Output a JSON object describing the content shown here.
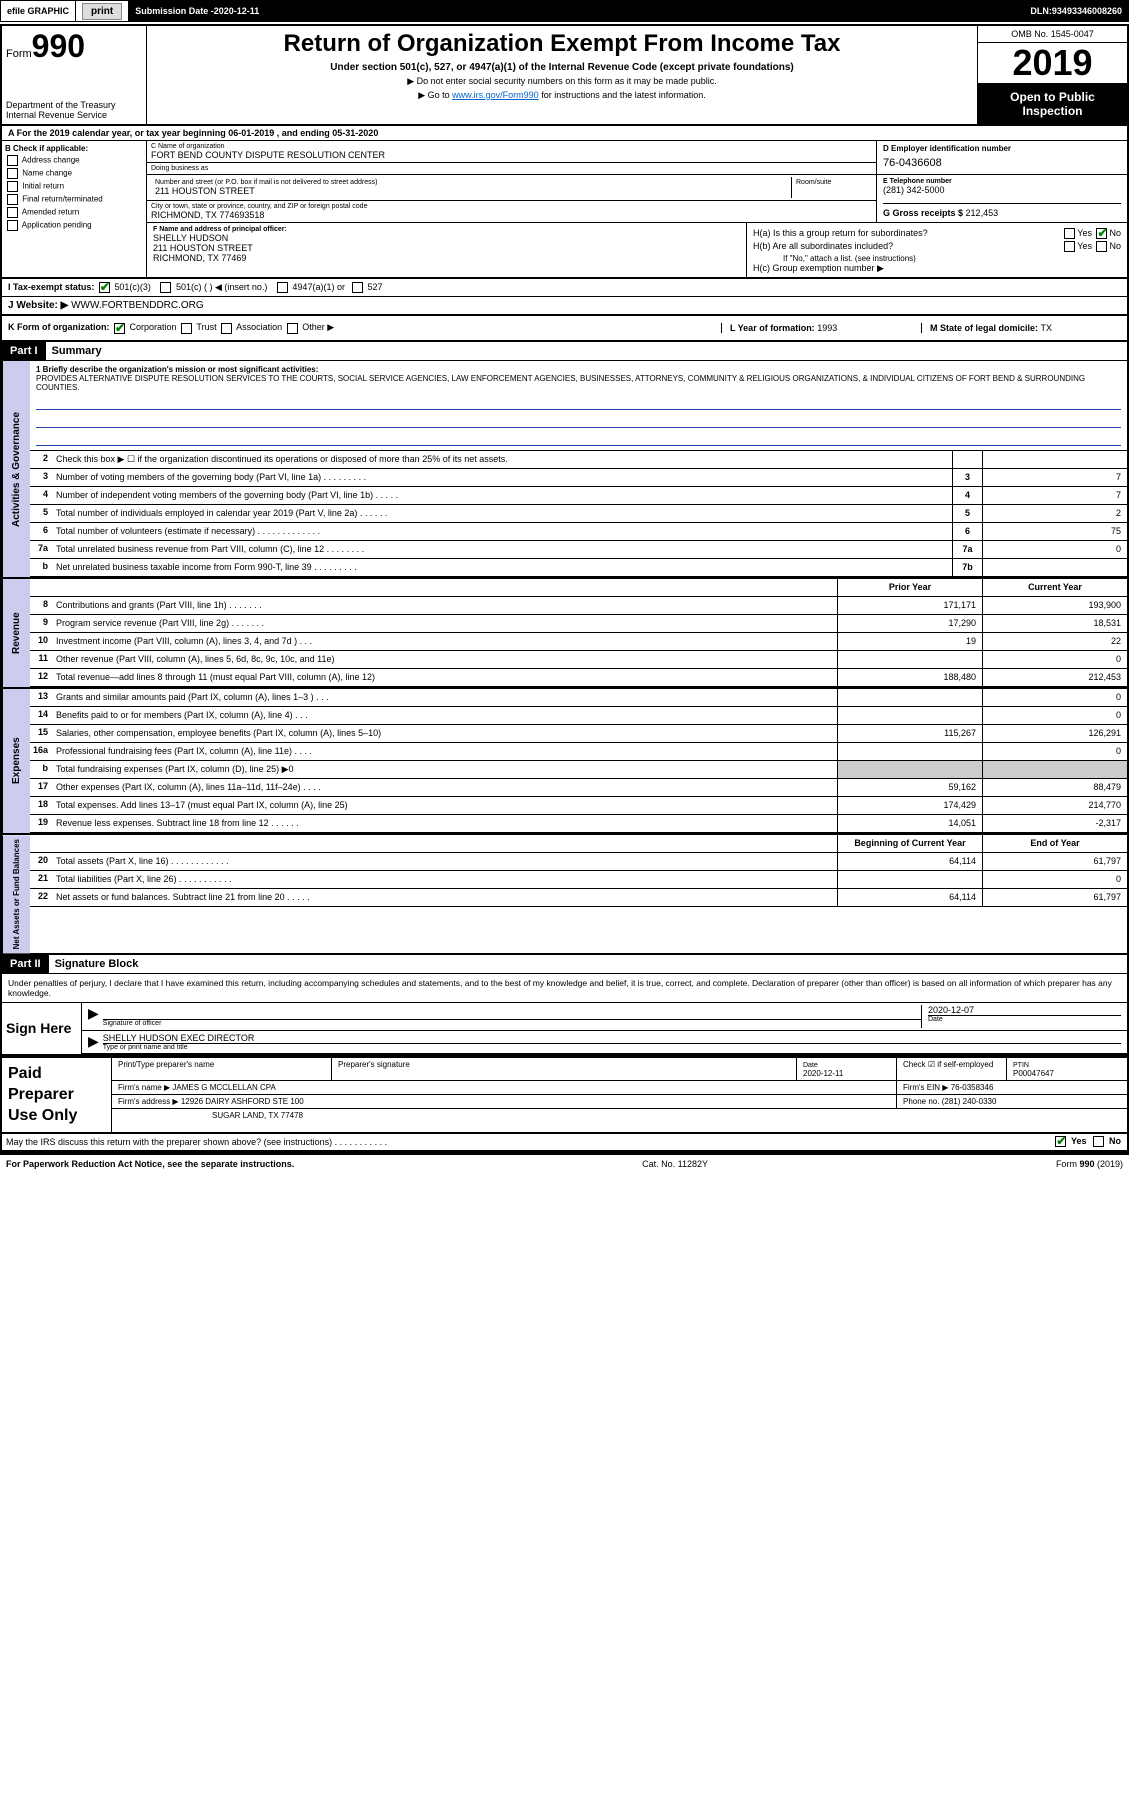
{
  "topbar": {
    "efile": "efile GRAPHIC",
    "print": "print",
    "subdate_lbl": "Submission Date - ",
    "subdate": "2020-12-11",
    "dln_lbl": "DLN: ",
    "dln": "93493346008260"
  },
  "header": {
    "form_prefix": "Form",
    "form_num": "990",
    "dept1": "Department of the Treasury",
    "dept2": "Internal Revenue Service",
    "title": "Return of Organization Exempt From Income Tax",
    "subtitle": "Under section 501(c), 527, or 4947(a)(1) of the Internal Revenue Code (except private foundations)",
    "note1": "▶ Do not enter social security numbers on this form as it may be made public.",
    "note2_pre": "▶ Go to ",
    "note2_link": "www.irs.gov/Form990",
    "note2_post": " for instructions and the latest information.",
    "omb": "OMB No. 1545-0047",
    "year": "2019",
    "otp1": "Open to Public",
    "otp2": "Inspection"
  },
  "rowA": "A For the 2019 calendar year, or tax year beginning 06-01-2019    , and ending 05-31-2020",
  "B": {
    "lbl": "B Check if applicable:",
    "opts": [
      "Address change",
      "Name change",
      "Initial return",
      "Final return/terminated",
      "Amended return",
      "Application pending"
    ]
  },
  "C": {
    "name_lbl": "C Name of organization",
    "name": "FORT BEND COUNTY DISPUTE RESOLUTION CENTER",
    "dba_lbl": "Doing business as",
    "dba": "",
    "addr_lbl": "Number and street (or P.O. box if mail is not delivered to street address)",
    "addr": "211 HOUSTON STREET",
    "room_lbl": "Room/suite",
    "city_lbl": "City or town, state or province, country, and ZIP or foreign postal code",
    "city": "RICHMOND, TX  774693518"
  },
  "D": {
    "lbl": "D Employer identification number",
    "val": "76-0436608"
  },
  "E": {
    "lbl": "E Telephone number",
    "val": "(281) 342-5000"
  },
  "G": {
    "lbl": "G Gross receipts $ ",
    "val": "212,453"
  },
  "F": {
    "lbl": "F  Name and address of principal officer:",
    "name": "SHELLY HUDSON",
    "addr": "211 HOUSTON STREET",
    "city": "RICHMOND, TX  77469"
  },
  "H": {
    "a": "H(a)  Is this a group return for subordinates?",
    "b": "H(b)  Are all subordinates included?",
    "b_note": "If \"No,\" attach a list. (see instructions)",
    "c": "H(c)  Group exemption number ▶",
    "yes": "Yes",
    "no": "No"
  },
  "I": {
    "lbl": "I   Tax-exempt status:",
    "o1": "501(c)(3)",
    "o2": "501(c) (   ) ◀ (insert no.)",
    "o3": "4947(a)(1) or",
    "o4": "527"
  },
  "J": {
    "lbl": "J   Website: ▶ ",
    "val": "WWW.FORTBENDDRC.ORG"
  },
  "K": {
    "lbl": "K Form of organization:",
    "o1": "Corporation",
    "o2": "Trust",
    "o3": "Association",
    "o4": "Other ▶"
  },
  "L": {
    "lbl": "L Year of formation: ",
    "val": "1993"
  },
  "M": {
    "lbl": "M State of legal domicile: ",
    "val": "TX"
  },
  "part1": {
    "hdr": "Part I",
    "title": "Summary"
  },
  "tabs": {
    "gov": "Activities & Governance",
    "rev": "Revenue",
    "exp": "Expenses",
    "net": "Net Assets or Fund Balances"
  },
  "mission": {
    "lbl": "1  Briefly describe the organization's mission or most significant activities:",
    "text": "PROVIDES ALTERNATIVE DISPUTE RESOLUTION SERVICES TO THE COURTS, SOCIAL SERVICE AGENCIES, LAW ENFORCEMENT AGENCIES, BUSINESSES, ATTORNEYS, COMMUNITY & RELIGIOUS ORGANIZATIONS, & INDIVIDUAL CITIZENS OF FORT BEND & SURROUNDING COUNTIES."
  },
  "gov_lines": [
    {
      "n": "2",
      "d": "Check this box ▶ ☐  if the organization discontinued its operations or disposed of more than 25% of its net assets.",
      "b": "",
      "v": ""
    },
    {
      "n": "3",
      "d": "Number of voting members of the governing body (Part VI, line 1a)  .   .   .   .   .   .   .   .   .",
      "b": "3",
      "v": "7"
    },
    {
      "n": "4",
      "d": "Number of independent voting members of the governing body (Part VI, line 1b)  .   .   .   .   .",
      "b": "4",
      "v": "7"
    },
    {
      "n": "5",
      "d": "Total number of individuals employed in calendar year 2019 (Part V, line 2a)  .   .   .   .   .   .",
      "b": "5",
      "v": "2"
    },
    {
      "n": "6",
      "d": "Total number of volunteers (estimate if necessary)   .   .   .   .   .   .   .   .   .   .   .   .   .",
      "b": "6",
      "v": "75"
    },
    {
      "n": "7a",
      "d": "Total unrelated business revenue from Part VIII, column (C), line 12  .   .   .   .   .   .   .   .",
      "b": "7a",
      "v": "0"
    },
    {
      "n": "b",
      "d": "Net unrelated business taxable income from Form 990-T, line 39  .   .   .   .   .   .   .   .   .",
      "b": "7b",
      "v": ""
    }
  ],
  "col_hdr": {
    "prior": "Prior Year",
    "current": "Current Year"
  },
  "rev_lines": [
    {
      "n": "8",
      "d": "Contributions and grants (Part VIII, line 1h)   .   .   .   .   .   .   .",
      "p": "171,171",
      "c": "193,900"
    },
    {
      "n": "9",
      "d": "Program service revenue (Part VIII, line 2g)   .   .   .   .   .   .   .",
      "p": "17,290",
      "c": "18,531"
    },
    {
      "n": "10",
      "d": "Investment income (Part VIII, column (A), lines 3, 4, and 7d )   .   .   .",
      "p": "19",
      "c": "22"
    },
    {
      "n": "11",
      "d": "Other revenue (Part VIII, column (A), lines 5, 6d, 8c, 9c, 10c, and 11e)",
      "p": "",
      "c": "0"
    },
    {
      "n": "12",
      "d": "Total revenue—add lines 8 through 11 (must equal Part VIII, column (A), line 12)",
      "p": "188,480",
      "c": "212,453"
    }
  ],
  "exp_lines": [
    {
      "n": "13",
      "d": "Grants and similar amounts paid (Part IX, column (A), lines 1–3 )  .   .   .",
      "p": "",
      "c": "0"
    },
    {
      "n": "14",
      "d": "Benefits paid to or for members (Part IX, column (A), line 4)   .   .   .",
      "p": "",
      "c": "0"
    },
    {
      "n": "15",
      "d": "Salaries, other compensation, employee benefits (Part IX, column (A), lines 5–10)",
      "p": "115,267",
      "c": "126,291"
    },
    {
      "n": "16a",
      "d": "Professional fundraising fees (Part IX, column (A), line 11e)  .   .   .   .",
      "p": "",
      "c": "0"
    },
    {
      "n": "b",
      "d": "Total fundraising expenses (Part IX, column (D), line 25) ▶0",
      "p": "GRAY",
      "c": "GRAY"
    },
    {
      "n": "17",
      "d": "Other expenses (Part IX, column (A), lines 11a–11d, 11f–24e)  .   .   .   .",
      "p": "59,162",
      "c": "88,479"
    },
    {
      "n": "18",
      "d": "Total expenses. Add lines 13–17 (must equal Part IX, column (A), line 25)",
      "p": "174,429",
      "c": "214,770"
    },
    {
      "n": "19",
      "d": "Revenue less expenses. Subtract line 18 from line 12  .   .   .   .   .   .",
      "p": "14,051",
      "c": "-2,317"
    }
  ],
  "net_hdr": {
    "b": "Beginning of Current Year",
    "e": "End of Year"
  },
  "net_lines": [
    {
      "n": "20",
      "d": "Total assets (Part X, line 16)  .   .   .   .   .   .   .   .   .   .   .   .",
      "p": "64,114",
      "c": "61,797"
    },
    {
      "n": "21",
      "d": "Total liabilities (Part X, line 26)  .   .   .   .   .   .   .   .   .   .   .",
      "p": "",
      "c": "0"
    },
    {
      "n": "22",
      "d": "Net assets or fund balances. Subtract line 21 from line 20  .   .   .   .   .",
      "p": "64,114",
      "c": "61,797"
    }
  ],
  "part2": {
    "hdr": "Part II",
    "title": "Signature Block"
  },
  "sig": {
    "decl": "Under penalties of perjury, I declare that I have examined this return, including accompanying schedules and statements, and to the best of my knowledge and belief, it is true, correct, and complete. Declaration of preparer (other than officer) is based on all information of which preparer has any knowledge.",
    "sign_here": "Sign Here",
    "sig_lbl": "Signature of officer",
    "date_lbl": "Date",
    "date": "2020-12-07",
    "name": "SHELLY HUDSON  EXEC DIRECTOR",
    "name_lbl": "Type or print name and title"
  },
  "prep": {
    "title": "Paid Preparer Use Only",
    "r1": {
      "c1": "Print/Type preparer's name",
      "c2": "Preparer's signature",
      "c3": "Date",
      "c3v": "2020-12-11",
      "c4": "Check ☑  if self-employed",
      "c5": "PTIN",
      "c5v": "P00047647"
    },
    "r2": {
      "lbl": "Firm's name    ▶",
      "val": "JAMES G MCCLELLAN CPA",
      "ein_lbl": "Firm's EIN ▶",
      "ein": "76-0358346"
    },
    "r3": {
      "lbl": "Firm's address ▶",
      "val": "12926 DAIRY ASHFORD STE 100",
      "ph_lbl": "Phone no.",
      "ph": "(281) 240-0330"
    },
    "r3b": {
      "city": "SUGAR LAND, TX  77478"
    }
  },
  "discuss": {
    "q": "May the IRS discuss this return with the preparer shown above? (see instructions)   .   .   .   .   .   .   .   .   .   .   .",
    "yes": "Yes",
    "no": "No"
  },
  "footer": {
    "l": "For Paperwork Reduction Act Notice, see the separate instructions.",
    "c": "Cat. No. 11282Y",
    "r": "Form 990 (2019)"
  }
}
